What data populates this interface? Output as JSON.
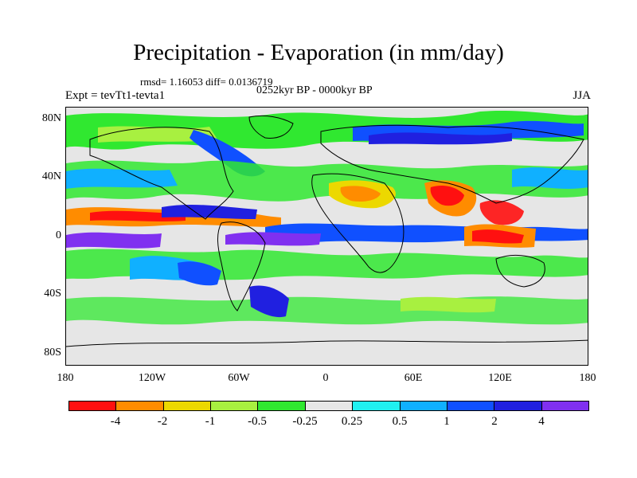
{
  "header": {
    "title": "Precipitation - Evaporation (in mm/day)",
    "stats": "rmsd= 1.16053  diff= 0.0136719",
    "period": "0252kyr BP - 0000kyr BP",
    "experiment": "Expt = tevTt1-tevta1",
    "season": "JJA"
  },
  "axes": {
    "y_ticks": [
      "80N",
      "40N",
      "0",
      "40S",
      "80S"
    ],
    "x_ticks": [
      "180",
      "120W",
      "60W",
      "0",
      "60E",
      "120E",
      "180"
    ]
  },
  "colorbar": {
    "labels": [
      "-4",
      "-2",
      "-1",
      "-0.5",
      "-0.25",
      "0.25",
      "0.5",
      "1",
      "2",
      "4"
    ],
    "colors": [
      "#ff1010",
      "#ff8c00",
      "#ecd800",
      "#a8f040",
      "#30e830",
      "#e6e6e6",
      "#20f0f0",
      "#10b0ff",
      "#1050ff",
      "#2020e0",
      "#8030f0"
    ]
  },
  "colors": {
    "land_outline": "#000000",
    "neutral": "#e6e6e6"
  }
}
